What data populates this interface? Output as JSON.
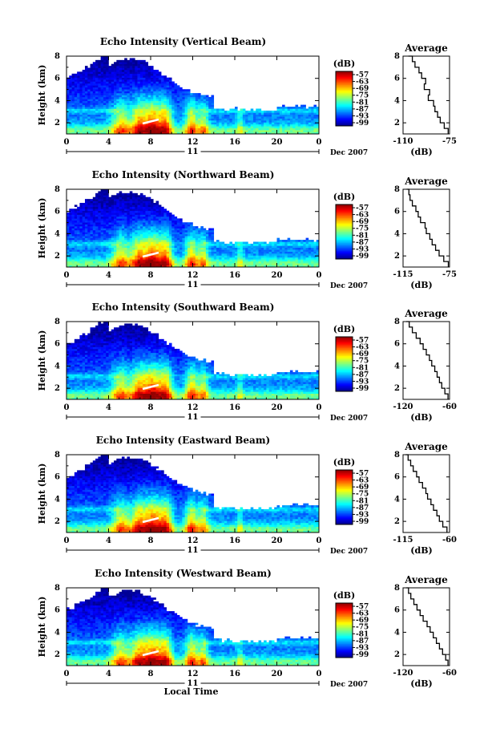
{
  "figure": {
    "common_ylabel": "Height (km)",
    "xlabel": "Local Time",
    "date_day": "11",
    "date_label": "Dec 2007",
    "colorbar_unit": "(dB)",
    "average_title": "Average",
    "average_xlabel": "(dB)"
  },
  "chart_data": [
    {
      "type": "heatmap",
      "title": "Echo Intensity (Vertical Beam)",
      "x_ticks": [
        "0",
        "4",
        "8",
        "12",
        "16",
        "20",
        "0"
      ],
      "y_ticks": [
        "2",
        "4",
        "6",
        "8"
      ],
      "colorbar_ticks": [
        "-57",
        "-63",
        "-69",
        "-75",
        "-81",
        "-87",
        "-93",
        "-99"
      ],
      "average": {
        "x_ticks": [
          "-110",
          "-75"
        ],
        "xlim": [
          -110,
          -75
        ],
        "ylim": [
          1,
          8
        ],
        "profile": [
          [
            -76,
            1.0
          ],
          [
            -79,
            1.5
          ],
          [
            -82,
            2.0
          ],
          [
            -84,
            2.5
          ],
          [
            -86,
            3.0
          ],
          [
            -87,
            3.5
          ],
          [
            -91,
            4.0
          ],
          [
            -90,
            4.5
          ],
          [
            -94,
            5.0
          ],
          [
            -93,
            5.5
          ],
          [
            -96,
            6.0
          ],
          [
            -98,
            6.5
          ],
          [
            -101,
            7.0
          ],
          [
            -103,
            7.5
          ],
          [
            -106,
            8.0
          ]
        ]
      }
    },
    {
      "type": "heatmap",
      "title": "Echo Intensity (Northward Beam)",
      "x_ticks": [
        "0",
        "4",
        "8",
        "12",
        "16",
        "20",
        "0"
      ],
      "y_ticks": [
        "2",
        "4",
        "6",
        "8"
      ],
      "colorbar_ticks": [
        "-57",
        "-63",
        "-69",
        "-75",
        "-81",
        "-87",
        "-93",
        "-99"
      ],
      "average": {
        "x_ticks": [
          "-115",
          "-75"
        ],
        "xlim": [
          -115,
          -75
        ],
        "ylim": [
          1,
          8
        ],
        "profile": [
          [
            -76,
            1.0
          ],
          [
            -80,
            1.5
          ],
          [
            -84,
            2.0
          ],
          [
            -87,
            2.5
          ],
          [
            -90,
            3.0
          ],
          [
            -92,
            3.5
          ],
          [
            -95,
            4.0
          ],
          [
            -96,
            4.5
          ],
          [
            -100,
            5.0
          ],
          [
            -102,
            5.5
          ],
          [
            -104,
            6.0
          ],
          [
            -107,
            6.5
          ],
          [
            -109,
            7.0
          ],
          [
            -110,
            7.5
          ],
          [
            -112,
            8.0
          ]
        ]
      }
    },
    {
      "type": "heatmap",
      "title": "Echo Intensity (Southward Beam)",
      "x_ticks": [
        "0",
        "4",
        "8",
        "12",
        "16",
        "20",
        "0"
      ],
      "y_ticks": [
        "2",
        "4",
        "6",
        "8"
      ],
      "colorbar_ticks": [
        "-57",
        "-63",
        "-69",
        "-75",
        "-81",
        "-87",
        "-93",
        "-99"
      ],
      "average": {
        "x_ticks": [
          "-120",
          "-60"
        ],
        "xlim": [
          -120,
          -60
        ],
        "ylim": [
          1,
          8
        ],
        "profile": [
          [
            -62,
            1.0
          ],
          [
            -66,
            1.5
          ],
          [
            -70,
            2.0
          ],
          [
            -73,
            2.5
          ],
          [
            -76,
            3.0
          ],
          [
            -79,
            3.5
          ],
          [
            -83,
            4.0
          ],
          [
            -86,
            4.5
          ],
          [
            -90,
            5.0
          ],
          [
            -94,
            5.5
          ],
          [
            -98,
            6.0
          ],
          [
            -103,
            6.5
          ],
          [
            -108,
            7.0
          ],
          [
            -112,
            7.5
          ],
          [
            -116,
            8.0
          ]
        ]
      }
    },
    {
      "type": "heatmap",
      "title": "Echo Intensity (Eastward Beam)",
      "x_ticks": [
        "0",
        "4",
        "8",
        "12",
        "16",
        "20",
        "0"
      ],
      "y_ticks": [
        "2",
        "4",
        "6",
        "8"
      ],
      "colorbar_ticks": [
        "-57",
        "-63",
        "-69",
        "-75",
        "-81",
        "-87",
        "-93",
        "-99"
      ],
      "average": {
        "x_ticks": [
          "-115",
          "-60"
        ],
        "xlim": [
          -115,
          -60
        ],
        "ylim": [
          1,
          8
        ],
        "profile": [
          [
            -63,
            1.0
          ],
          [
            -68,
            1.5
          ],
          [
            -72,
            2.0
          ],
          [
            -75,
            2.5
          ],
          [
            -79,
            3.0
          ],
          [
            -82,
            3.5
          ],
          [
            -86,
            4.0
          ],
          [
            -88,
            4.5
          ],
          [
            -92,
            5.0
          ],
          [
            -96,
            5.5
          ],
          [
            -99,
            6.0
          ],
          [
            -103,
            6.5
          ],
          [
            -106,
            7.0
          ],
          [
            -109,
            7.5
          ],
          [
            -112,
            8.0
          ]
        ]
      }
    },
    {
      "type": "heatmap",
      "title": "Echo Intensity (Westward Beam)",
      "x_ticks": [
        "0",
        "4",
        "8",
        "12",
        "16",
        "20",
        "0"
      ],
      "y_ticks": [
        "2",
        "4",
        "6",
        "8"
      ],
      "colorbar_ticks": [
        "-57",
        "-63",
        "-69",
        "-75",
        "-81",
        "-87",
        "-93",
        "-99"
      ],
      "average": {
        "x_ticks": [
          "-120",
          "-60"
        ],
        "xlim": [
          -120,
          -60
        ],
        "ylim": [
          1,
          8
        ],
        "profile": [
          [
            -62,
            1.0
          ],
          [
            -65,
            1.5
          ],
          [
            -69,
            2.0
          ],
          [
            -73,
            2.5
          ],
          [
            -77,
            3.0
          ],
          [
            -81,
            3.5
          ],
          [
            -85,
            4.0
          ],
          [
            -89,
            4.5
          ],
          [
            -94,
            5.0
          ],
          [
            -98,
            5.5
          ],
          [
            -102,
            6.0
          ],
          [
            -106,
            6.5
          ],
          [
            -110,
            7.0
          ],
          [
            -113,
            7.5
          ],
          [
            -116,
            8.0
          ]
        ]
      }
    }
  ]
}
